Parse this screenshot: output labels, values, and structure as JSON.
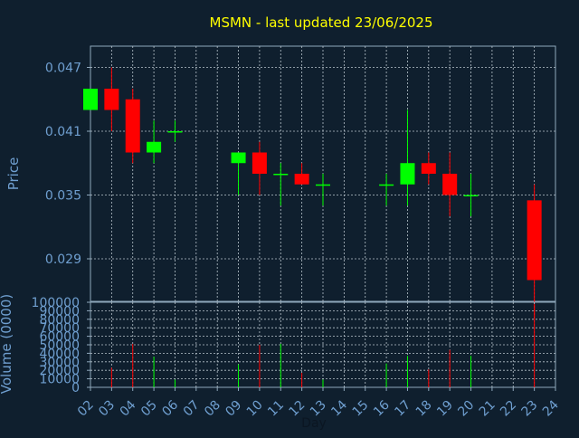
{
  "chart_data": [
    {
      "type": "candlestick",
      "title": "MSMN - last updated 23/06/2025",
      "ylabel": "Price",
      "ylim": [
        0.025,
        0.049
      ],
      "yticks": [
        "0.029",
        "0.035",
        "0.041",
        "0.047"
      ],
      "ytick_values": [
        0.029,
        0.035,
        0.041,
        0.047
      ],
      "grid": true,
      "candles": [
        {
          "day": 2,
          "open": 0.043,
          "close": 0.045,
          "high": 0.045,
          "low": 0.043
        },
        {
          "day": 3,
          "open": 0.045,
          "close": 0.043,
          "high": 0.047,
          "low": 0.041
        },
        {
          "day": 4,
          "open": 0.044,
          "close": 0.039,
          "high": 0.045,
          "low": 0.038
        },
        {
          "day": 5,
          "open": 0.039,
          "close": 0.04,
          "high": 0.042,
          "low": 0.038
        },
        {
          "day": 6,
          "open": 0.041,
          "close": 0.041,
          "high": 0.042,
          "low": 0.04
        },
        {
          "day": 9,
          "open": 0.038,
          "close": 0.039,
          "high": 0.039,
          "low": 0.035
        },
        {
          "day": 10,
          "open": 0.039,
          "close": 0.037,
          "high": 0.04,
          "low": 0.035
        },
        {
          "day": 11,
          "open": 0.037,
          "close": 0.037,
          "high": 0.038,
          "low": 0.034
        },
        {
          "day": 12,
          "open": 0.037,
          "close": 0.036,
          "high": 0.038,
          "low": 0.036
        },
        {
          "day": 13,
          "open": 0.036,
          "close": 0.036,
          "high": 0.037,
          "low": 0.034
        },
        {
          "day": 16,
          "open": 0.036,
          "close": 0.036,
          "high": 0.037,
          "low": 0.034
        },
        {
          "day": 17,
          "open": 0.036,
          "close": 0.038,
          "high": 0.043,
          "low": 0.034
        },
        {
          "day": 18,
          "open": 0.038,
          "close": 0.037,
          "high": 0.039,
          "low": 0.036
        },
        {
          "day": 19,
          "open": 0.037,
          "close": 0.035,
          "high": 0.039,
          "low": 0.033
        },
        {
          "day": 20,
          "open": 0.035,
          "close": 0.035,
          "high": 0.037,
          "low": 0.033
        },
        {
          "day": 23,
          "open": 0.0345,
          "close": 0.027,
          "high": 0.036,
          "low": 0.0235
        }
      ]
    },
    {
      "type": "bar",
      "xlabel": "Day",
      "ylabel": "Volume (0000)",
      "ylim": [
        0,
        100000
      ],
      "yticks": [
        "0",
        "10000",
        "20000",
        "30000",
        "40000",
        "50000",
        "60000",
        "70000",
        "80000",
        "90000",
        "100000"
      ],
      "ytick_values": [
        0,
        10000,
        20000,
        30000,
        40000,
        50000,
        60000,
        70000,
        80000,
        90000,
        100000
      ],
      "x_ticks": [
        "02",
        "03",
        "04",
        "05",
        "06",
        "07",
        "08",
        "09",
        "10",
        "11",
        "12",
        "13",
        "14",
        "15",
        "16",
        "17",
        "18",
        "19",
        "20",
        "21",
        "22",
        "23",
        "24"
      ],
      "x_tick_values": [
        2,
        3,
        4,
        5,
        6,
        7,
        8,
        9,
        10,
        11,
        12,
        13,
        14,
        15,
        16,
        17,
        18,
        19,
        20,
        21,
        22,
        23,
        24
      ],
      "bars": [
        {
          "day": 2,
          "value": 0,
          "direction": "up"
        },
        {
          "day": 3,
          "value": 23000,
          "direction": "down"
        },
        {
          "day": 4,
          "value": 51000,
          "direction": "down"
        },
        {
          "day": 5,
          "value": 36000,
          "direction": "up"
        },
        {
          "day": 6,
          "value": 9000,
          "direction": "up"
        },
        {
          "day": 9,
          "value": 27000,
          "direction": "up"
        },
        {
          "day": 10,
          "value": 50000,
          "direction": "down"
        },
        {
          "day": 11,
          "value": 51000,
          "direction": "up"
        },
        {
          "day": 12,
          "value": 17000,
          "direction": "down"
        },
        {
          "day": 13,
          "value": 9000,
          "direction": "up"
        },
        {
          "day": 16,
          "value": 28000,
          "direction": "up"
        },
        {
          "day": 17,
          "value": 37000,
          "direction": "up"
        },
        {
          "day": 18,
          "value": 21000,
          "direction": "down"
        },
        {
          "day": 19,
          "value": 44000,
          "direction": "down"
        },
        {
          "day": 20,
          "value": 37000,
          "direction": "up"
        },
        {
          "day": 23,
          "value": 97000,
          "direction": "down"
        }
      ]
    }
  ],
  "colors": {
    "background": "#0f1f2e",
    "axis": "#8fa8bc",
    "grid": "#b8c4cc",
    "tick_text": "#6f9fd0",
    "title": "#ffff00",
    "up": "#00ff00",
    "down": "#ff0000"
  }
}
